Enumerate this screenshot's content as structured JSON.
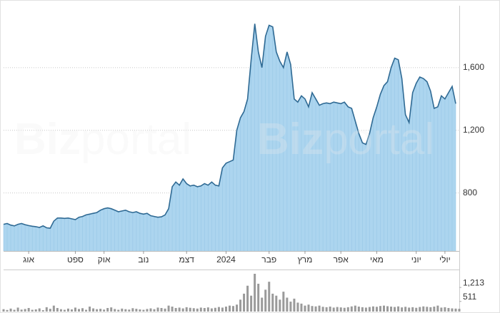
{
  "chart_data": {
    "type": "area",
    "watermark": {
      "bold": "Biz",
      "light": "portal"
    },
    "color": "#2f6a94",
    "fill": "#acd5ef",
    "values": [
      600,
      605,
      595,
      590,
      600,
      605,
      598,
      592,
      588,
      585,
      580,
      590,
      578,
      575,
      620,
      640,
      640,
      638,
      640,
      635,
      630,
      645,
      650,
      660,
      665,
      670,
      675,
      690,
      700,
      705,
      700,
      690,
      680,
      685,
      690,
      680,
      675,
      680,
      670,
      665,
      670,
      655,
      650,
      645,
      648,
      660,
      700,
      840,
      870,
      850,
      890,
      860,
      845,
      850,
      840,
      845,
      860,
      850,
      870,
      850,
      845,
      960,
      990,
      1000,
      1010,
      1200,
      1280,
      1320,
      1400,
      1650,
      1880,
      1700,
      1600,
      1800,
      1870,
      1860,
      1700,
      1640,
      1600,
      1700,
      1620,
      1400,
      1380,
      1420,
      1400,
      1350,
      1440,
      1400,
      1360,
      1370,
      1375,
      1370,
      1380,
      1375,
      1370,
      1380,
      1350,
      1340,
      1260,
      1180,
      1120,
      1110,
      1180,
      1280,
      1350,
      1430,
      1485,
      1510,
      1600,
      1660,
      1650,
      1530,
      1300,
      1250,
      1440,
      1500,
      1540,
      1530,
      1510,
      1450,
      1340,
      1350,
      1420,
      1400,
      1440,
      1480,
      1370
    ],
    "xlim": [
      0,
      127
    ],
    "xticks": [
      {
        "value": 7,
        "label": "אוג"
      },
      {
        "value": 20,
        "label": "ספט"
      },
      {
        "value": 28,
        "label": "אוק"
      },
      {
        "value": 39,
        "label": "נוב"
      },
      {
        "value": 51,
        "label": "דצמ"
      },
      {
        "value": 62,
        "label": "2024"
      },
      {
        "value": 74,
        "label": "פבר"
      },
      {
        "value": 84,
        "label": "מרץ"
      },
      {
        "value": 94,
        "label": "אפר"
      },
      {
        "value": 104,
        "label": "מאי"
      },
      {
        "value": 115,
        "label": "יוני"
      },
      {
        "value": 123,
        "label": "יולי"
      }
    ],
    "ylim": [
      430,
      1995
    ],
    "yticks": [
      800,
      {
        "value": 1200,
        "label": "1,200"
      },
      {
        "value": 1600,
        "label": "1,600"
      }
    ],
    "grid": true,
    "volume": {
      "type": "bar",
      "color": "#9a9a9a",
      "ylim": [
        0,
        1900
      ],
      "yticks": [
        {
          "value": 1213,
          "label": "1,213"
        },
        511
      ],
      "values": [
        120,
        80,
        150,
        90,
        200,
        100,
        130,
        180,
        90,
        110,
        160,
        70,
        220,
        140,
        300,
        180,
        120,
        90,
        150,
        110,
        200,
        130,
        170,
        90,
        250,
        160,
        120,
        140,
        100,
        180,
        210,
        130,
        90,
        150,
        120,
        100,
        170,
        140,
        110,
        90,
        130,
        160,
        120,
        200,
        180,
        150,
        300,
        250,
        180,
        200,
        160,
        220,
        190,
        170,
        150,
        200,
        180,
        210,
        160,
        190,
        230,
        200,
        250,
        300,
        280,
        350,
        600,
        900,
        1300,
        800,
        1900,
        1400,
        700,
        1100,
        1500,
        900,
        800,
        600,
        1000,
        700,
        500,
        650,
        450,
        400,
        300,
        350,
        280,
        260,
        300,
        240,
        220,
        250,
        200,
        230,
        210,
        190,
        220,
        260,
        300,
        250,
        220,
        200,
        230,
        260,
        240,
        280,
        300,
        270,
        250,
        230,
        260,
        210,
        240,
        200,
        220,
        190,
        230,
        260,
        240,
        220,
        250,
        300,
        200,
        220,
        180,
        160,
        150,
        140
      ]
    }
  }
}
